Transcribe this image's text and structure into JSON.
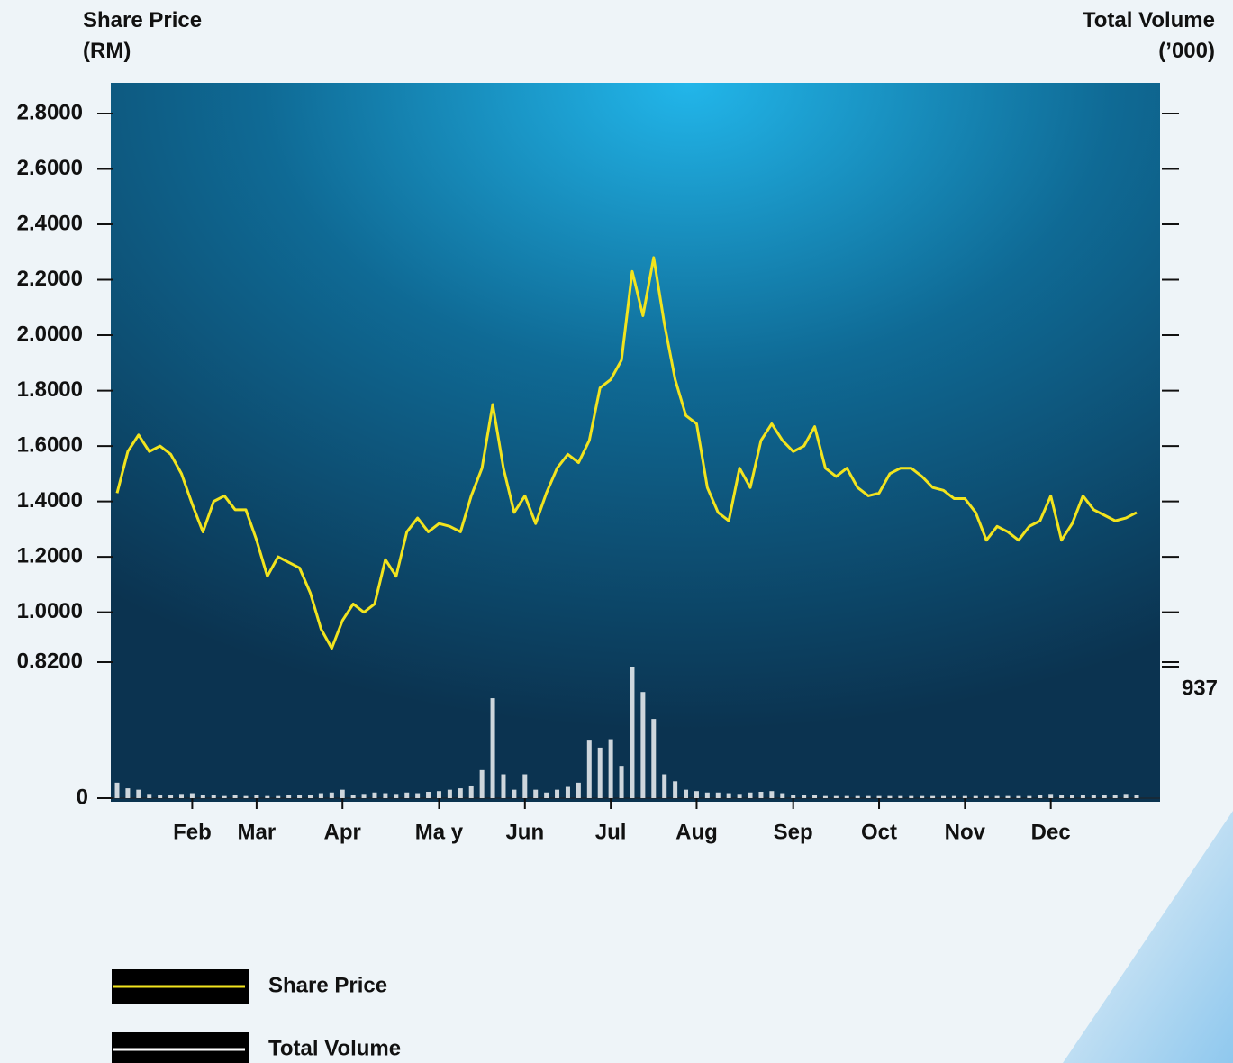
{
  "chart_data": {
    "type": "line",
    "ylabel": "Share Price\n(RM)",
    "y2label": "Total Volume\n(’000)",
    "categories": [
      null,
      null,
      null,
      null,
      null,
      null,
      null,
      "Feb",
      null,
      null,
      null,
      null,
      null,
      "Mar",
      null,
      null,
      null,
      null,
      null,
      null,
      null,
      "Apr",
      null,
      null,
      null,
      null,
      null,
      null,
      null,
      null,
      "Ma y",
      null,
      null,
      null,
      null,
      null,
      null,
      null,
      "Jun",
      null,
      null,
      null,
      null,
      null,
      null,
      null,
      "Jul",
      null,
      null,
      null,
      null,
      null,
      null,
      null,
      "Aug",
      null,
      null,
      null,
      null,
      null,
      null,
      null,
      null,
      "Sep",
      null,
      null,
      null,
      null,
      null,
      null,
      null,
      "Oct",
      null,
      null,
      null,
      null,
      null,
      null,
      null,
      "Nov",
      null,
      null,
      null,
      null,
      null,
      null,
      null,
      "Dec",
      null,
      null,
      null,
      null,
      null,
      null,
      null,
      null
    ],
    "series": [
      {
        "name": "Share Price",
        "type": "line",
        "color": "#f2e41e",
        "values": [
          1.43,
          1.58,
          1.64,
          1.58,
          1.6,
          1.57,
          1.5,
          1.39,
          1.29,
          1.4,
          1.42,
          1.37,
          1.37,
          1.26,
          1.13,
          1.2,
          1.18,
          1.16,
          1.07,
          0.94,
          0.87,
          0.97,
          1.03,
          1.0,
          1.03,
          1.19,
          1.13,
          1.29,
          1.34,
          1.29,
          1.32,
          1.31,
          1.29,
          1.42,
          1.52,
          1.75,
          1.52,
          1.36,
          1.42,
          1.32,
          1.43,
          1.52,
          1.57,
          1.54,
          1.62,
          1.81,
          1.84,
          1.91,
          2.23,
          2.07,
          2.28,
          2.04,
          1.84,
          1.71,
          1.68,
          1.45,
          1.36,
          1.33,
          1.52,
          1.45,
          1.62,
          1.68,
          1.62,
          1.58,
          1.6,
          1.67,
          1.52,
          1.49,
          1.52,
          1.45,
          1.42,
          1.43,
          1.5,
          1.52,
          1.52,
          1.49,
          1.45,
          1.44,
          1.41,
          1.41,
          1.36,
          1.26,
          1.31,
          1.29,
          1.26,
          1.31,
          1.33,
          1.42,
          1.26,
          1.32,
          1.42,
          1.37,
          1.35,
          1.33,
          1.34,
          1.36
        ]
      },
      {
        "name": "Total Volume",
        "type": "bar",
        "axis": "y2",
        "color": "#ffffff",
        "values": [
          110,
          70,
          60,
          30,
          20,
          25,
          30,
          35,
          25,
          20,
          15,
          20,
          15,
          20,
          15,
          15,
          20,
          20,
          25,
          35,
          40,
          60,
          25,
          30,
          40,
          35,
          30,
          40,
          35,
          45,
          50,
          60,
          70,
          90,
          200,
          712,
          170,
          60,
          170,
          60,
          40,
          60,
          80,
          110,
          410,
          360,
          420,
          230,
          937,
          756,
          564,
          170,
          120,
          60,
          50,
          40,
          40,
          35,
          30,
          40,
          45,
          50,
          35,
          25,
          20,
          20,
          15,
          15,
          15,
          15,
          15,
          15,
          15,
          15,
          15,
          15,
          15,
          15,
          15,
          15,
          15,
          15,
          15,
          15,
          15,
          15,
          20,
          30,
          20,
          20,
          20,
          20,
          20,
          25,
          30,
          20
        ]
      }
    ],
    "ylim": [
      0.82,
      2.8
    ],
    "yticks": [
      {
        "value": 2.8,
        "label": "2.8000"
      },
      {
        "value": 2.6,
        "label": "2.6000"
      },
      {
        "value": 2.4,
        "label": "2.4000"
      },
      {
        "value": 2.2,
        "label": "2.2000"
      },
      {
        "value": 2.0,
        "label": "2.0000"
      },
      {
        "value": 1.8,
        "label": "1.8000"
      },
      {
        "value": 1.6,
        "label": "1.6000"
      },
      {
        "value": 1.4,
        "label": "1.4000"
      },
      {
        "value": 1.2,
        "label": "1.2000"
      },
      {
        "value": 1.0,
        "label": "1.0000"
      },
      {
        "value": 0.82,
        "label": "0.8200"
      }
    ],
    "y2lim": [
      0,
      937
    ],
    "y2ticks": [
      0,
      937
    ],
    "grid": false
  }
}
